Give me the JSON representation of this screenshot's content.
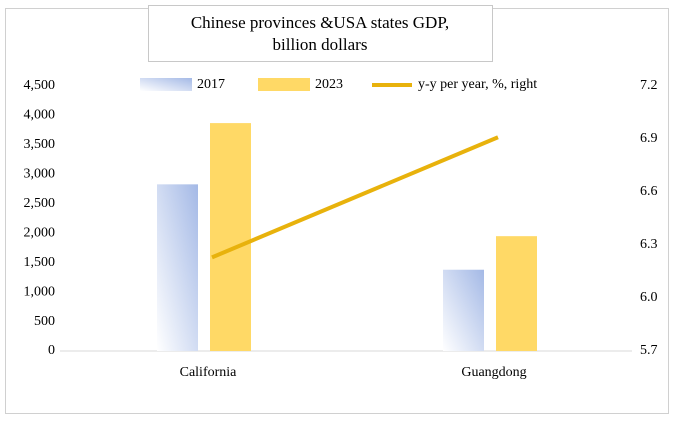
{
  "chart_data": {
    "type": "bar_line",
    "title": "Chinese provinces &USA states GDP,",
    "subtitle": "billion dollars",
    "categories": [
      "California",
      "Guangdong"
    ],
    "series": [
      {
        "name": "2017",
        "type": "bar",
        "color": "#a4b9e6",
        "values": [
          2830,
          1380
        ]
      },
      {
        "name": "2023",
        "type": "bar",
        "color": "#ffd966",
        "values": [
          3870,
          1950
        ]
      },
      {
        "name": "y-y per year, %, right",
        "type": "line",
        "axis": "y2",
        "color": "#e8b20c",
        "values": [
          6.23,
          6.91
        ]
      }
    ],
    "ylim": [
      0,
      4500
    ],
    "yticks": [
      0,
      500,
      {
        "value": 1000,
        "label": "1,000"
      },
      {
        "value": 1500,
        "label": "1,500"
      },
      {
        "value": 2000,
        "label": "2,000"
      },
      {
        "value": 2500,
        "label": "2,500"
      },
      {
        "value": 3000,
        "label": "3,000"
      },
      {
        "value": 3500,
        "label": "3,500"
      },
      {
        "value": 4000,
        "label": "4,000"
      },
      {
        "value": 4500,
        "label": "4,500"
      }
    ],
    "y2lim": [
      5.7,
      7.2
    ],
    "y2ticks": [
      5.7,
      {
        "value": 6,
        "label": "6.0"
      },
      6.3,
      6.6,
      6.9,
      7.2
    ],
    "legend": "top"
  }
}
